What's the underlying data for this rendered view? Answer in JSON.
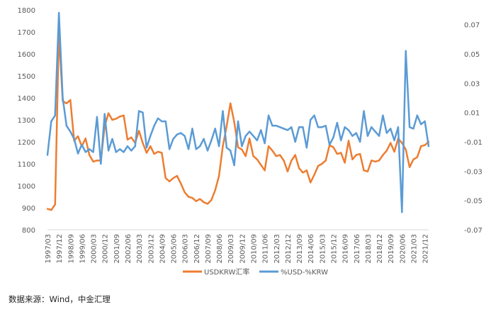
{
  "chart_data": {
    "type": "line",
    "x": [
      "1997/03",
      "1997/06",
      "1997/09",
      "1997/12",
      "1998/03",
      "1998/06",
      "1998/09",
      "1998/12",
      "1999/03",
      "1999/06",
      "1999/09",
      "1999/12",
      "2000/03",
      "2000/06",
      "2000/09",
      "2000/12",
      "2001/03",
      "2001/06",
      "2001/09",
      "2001/12",
      "2002/03",
      "2002/06",
      "2002/09",
      "2002/12",
      "2003/03",
      "2003/06",
      "2003/09",
      "2003/12",
      "2004/03",
      "2004/06",
      "2004/09",
      "2004/12",
      "2005/03",
      "2005/06",
      "2005/09",
      "2005/12",
      "2006/03",
      "2006/06",
      "2006/09",
      "2006/12",
      "2007/03",
      "2007/06",
      "2007/09",
      "2007/12",
      "2008/03",
      "2008/06",
      "2008/09",
      "2008/12",
      "2009/03",
      "2009/06",
      "2009/09",
      "2009/12",
      "2010/03",
      "2010/06",
      "2010/09",
      "2010/12",
      "2011/03",
      "2011/06",
      "2011/09",
      "2011/12",
      "2012/03",
      "2012/06",
      "2012/09",
      "2012/12",
      "2013/03",
      "2013/06",
      "2013/09",
      "2013/12",
      "2014/03",
      "2014/06",
      "2014/09",
      "2014/12",
      "2015/03",
      "2015/06",
      "2015/09",
      "2015/12",
      "2016/03",
      "2016/06",
      "2016/09",
      "2016/12",
      "2017/03",
      "2017/06",
      "2017/09",
      "2017/12",
      "2018/03",
      "2018/06",
      "2018/09",
      "2018/12",
      "2019/03",
      "2019/06",
      "2019/09",
      "2019/12",
      "2020/03",
      "2020/06",
      "2020/09",
      "2020/12",
      "2021/03",
      "2021/06",
      "2021/09",
      "2021/12",
      "2022/03"
    ],
    "x_tick_labels": [
      "1997/03",
      "1997/12",
      "1998/09",
      "1999/06",
      "2000/03",
      "2000/12",
      "2001/09",
      "2002/06",
      "2003/03",
      "2003/12",
      "2004/09",
      "2005/06",
      "2006/03",
      "2006/12",
      "2007/09",
      "2008/06",
      "2009/03",
      "2009/12",
      "2010/09",
      "2011/06",
      "2012/03",
      "2012/12",
      "2013/09",
      "2014/06",
      "2015/03",
      "2015/12",
      "2016/09",
      "2017/06",
      "2018/03",
      "2018/12",
      "2019/09",
      "2020/06",
      "2021/03",
      "2021/12"
    ],
    "y_left": {
      "min": 800,
      "max": 1800,
      "ticks": [
        800,
        900,
        1000,
        1100,
        1200,
        1300,
        1400,
        1500,
        1600,
        1700,
        1800
      ]
    },
    "y_right": {
      "min": -0.07,
      "max": 0.08,
      "ticks": [
        "-0.07",
        "-0.05",
        "-0.03",
        "-0.01",
        "0.01",
        "0.03",
        "0.05",
        "0.07"
      ],
      "tick_values": [
        -0.07,
        -0.05,
        -0.03,
        -0.01,
        0.01,
        0.03,
        0.05,
        0.07
      ]
    },
    "series": [
      {
        "name": "USDKRW汇率",
        "axis": "left",
        "color": "#ED7D31",
        "values": [
          895,
          890,
          915,
          1695,
          1385,
          1375,
          1390,
          1205,
          1225,
          1180,
          1215,
          1140,
          1110,
          1115,
          1115,
          1270,
          1330,
          1300,
          1305,
          1315,
          1320,
          1210,
          1220,
          1195,
          1250,
          1195,
          1150,
          1180,
          1145,
          1155,
          1150,
          1035,
          1020,
          1035,
          1045,
          1010,
          970,
          950,
          945,
          930,
          940,
          925,
          918,
          935,
          980,
          1045,
          1180,
          1270,
          1375,
          1290,
          1175,
          1165,
          1135,
          1215,
          1135,
          1120,
          1095,
          1070,
          1180,
          1160,
          1135,
          1140,
          1115,
          1065,
          1115,
          1140,
          1080,
          1060,
          1070,
          1015,
          1050,
          1090,
          1100,
          1115,
          1185,
          1175,
          1145,
          1150,
          1105,
          1205,
          1120,
          1140,
          1145,
          1070,
          1065,
          1115,
          1110,
          1115,
          1140,
          1160,
          1195,
          1155,
          1215,
          1195,
          1165,
          1085,
          1120,
          1130,
          1180,
          1185,
          1200
        ]
      },
      {
        "name": "%USD-%KRW",
        "axis": "right",
        "color": "#5B9BD5",
        "values": [
          -0.019,
          0.004,
          0.008,
          0.078,
          0.02,
          0.001,
          -0.003,
          -0.008,
          -0.018,
          -0.012,
          -0.017,
          -0.015,
          -0.017,
          0.007,
          -0.025,
          0.009,
          -0.016,
          -0.008,
          -0.017,
          -0.015,
          -0.017,
          -0.013,
          -0.016,
          -0.013,
          0.011,
          0.01,
          -0.014,
          -0.006,
          0.001,
          0.006,
          0.004,
          0.004,
          -0.015,
          -0.008,
          -0.005,
          -0.004,
          -0.006,
          -0.015,
          -0.001,
          -0.015,
          -0.013,
          -0.008,
          -0.016,
          -0.009,
          -0.001,
          -0.013,
          0.011,
          -0.014,
          -0.016,
          -0.026,
          0.004,
          -0.013,
          -0.006,
          -0.003,
          -0.006,
          -0.009,
          -0.002,
          -0.011,
          0.008,
          0.001,
          0.001,
          0.0,
          -0.001,
          -0.002,
          0.0,
          -0.01,
          0.0,
          0.0,
          -0.014,
          0.005,
          0.008,
          0.0,
          0.0,
          0.001,
          -0.012,
          -0.007,
          0.003,
          -0.009,
          0.0,
          -0.002,
          -0.006,
          -0.004,
          -0.01,
          0.011,
          -0.006,
          0.0,
          -0.003,
          -0.006,
          0.008,
          -0.004,
          -0.001,
          -0.009,
          0.0,
          -0.058,
          0.052,
          0.0,
          -0.001,
          0.008,
          0.002,
          0.004,
          -0.013
        ]
      }
    ],
    "legend_position": "bottom",
    "grid": false
  },
  "footer": {
    "source": "数据来源：Wind，中金汇理"
  }
}
